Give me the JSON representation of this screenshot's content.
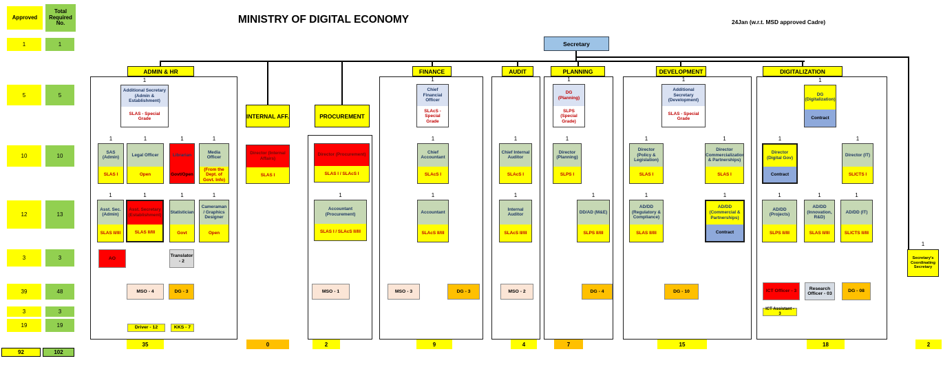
{
  "title": "MINISTRY OF DIGITAL ECONOMY",
  "note": "24Jan (w.r.t. MSD approved Cadre)",
  "secretary_label": "Secretary",
  "left_table": {
    "approved_header": "Approved",
    "required_header": "Total Required No.",
    "approved_values": [
      "1",
      "5",
      "10",
      "12",
      "3",
      "39",
      "3",
      "19"
    ],
    "required_values": [
      "1",
      "5",
      "10",
      "13",
      "3",
      "48",
      "3",
      "19"
    ],
    "approved_total": "92",
    "required_total": "102"
  },
  "coordinating": {
    "count": "1",
    "title": "Secretary's Coordinating Secretary",
    "total": "2"
  },
  "colors": {
    "yellow": "#FFFF00",
    "green": "#92D050",
    "box_green": "#C6D8B4",
    "red": "#FF0000",
    "orange": "#FFC000",
    "cream": "#FBE5D6",
    "secretary_blue": "#9DC3E6",
    "head_bluegray": "#D9E1F2",
    "contract_blue": "#8EA9DB",
    "research_gray": "#D6DCE4",
    "translator_gray": "#D9D9D9",
    "navy_text": "#1F3864",
    "red_text": "#C00000",
    "darkred_text": "#6B0A0A"
  },
  "departments": [
    {
      "name": "ADMIN & HR",
      "total": "35",
      "boxes": [
        {
          "count": "1",
          "title": "Additional Secretary (Admin & Establishment)",
          "grade": "SLAS - Special Grade"
        },
        {
          "count": "1",
          "title": "SAS (Admin)",
          "grade": "SLAS I"
        },
        {
          "count": "1",
          "title": "Legal Officer",
          "grade": "Open"
        },
        {
          "count": "1",
          "title": "Librarian",
          "grade": "Govt/Open"
        },
        {
          "count": "1",
          "title": "Media Officer",
          "grade": "(From the Dept. of Govt. Info)"
        },
        {
          "count": "1",
          "title": "Asst. Sec. (Admin)",
          "grade": "SLAS II/III"
        },
        {
          "count": "1",
          "title": "Asst. Secretary (Establishment)",
          "grade": "SLAS II/III"
        },
        {
          "count": "1",
          "title": "Statistician",
          "grade": "Govt"
        },
        {
          "count": "1",
          "title": "Cameraman / Graphics Designer",
          "grade": "Open"
        },
        {
          "title": "AO"
        },
        {
          "title": "Translator - 2"
        },
        {
          "title": "MSO - 4"
        },
        {
          "title": "DG - 3"
        },
        {
          "title": "Driver - 12"
        },
        {
          "title": "KKS - 7"
        }
      ]
    },
    {
      "name": "INTERNAL AFF.",
      "total": "0",
      "boxes": [
        {
          "title": "Director (Internal Affairs)",
          "grade": "SLAS I"
        }
      ]
    },
    {
      "name": "PROCUREMENT",
      "total": "2",
      "boxes": [
        {
          "title": "Director (Procurement)",
          "grade": "SLAS I / SLAcS I"
        },
        {
          "count": "1",
          "title": "Accountant (Procurement)",
          "grade": "SLAS I / SLAcS II/III"
        },
        {
          "title": "MSO - 1"
        }
      ]
    },
    {
      "name": "FINANCE",
      "total": "9",
      "boxes": [
        {
          "count": "1",
          "title": "Chief Financial Officer",
          "grade": "SLAcS - Special Grade"
        },
        {
          "count": "1",
          "title": "Chief Accountant",
          "grade": "SLAcS I"
        },
        {
          "count": "1",
          "title": "Accountant",
          "grade": "SLAcS II/III"
        },
        {
          "title": "MSO - 3"
        },
        {
          "title": "DG - 3"
        }
      ]
    },
    {
      "name": "AUDIT",
      "total": "4",
      "boxes": [
        {
          "count": "1",
          "title": "Chief Internal Auditor",
          "grade": "SLAcS I"
        },
        {
          "count": "1",
          "title": "Internal Auditor",
          "grade": "SLAcS II/III"
        },
        {
          "title": "MSO - 2"
        }
      ]
    },
    {
      "name": "PLANNING",
      "total": "7",
      "boxes": [
        {
          "count": "1",
          "title": "DG (Planning)",
          "grade": "SLPS (Special Grade)"
        },
        {
          "count": "1",
          "title": "Director (Planning)",
          "grade": "SLPS I"
        },
        {
          "count": "1",
          "title": "DD/AD (M&E)",
          "grade": "SLPS II/III"
        },
        {
          "title": "DG - 4"
        }
      ]
    },
    {
      "name": "DEVELOPMENT",
      "total": "15",
      "boxes": [
        {
          "count": "1",
          "title": "Additional Secretary (Development)",
          "grade": "SLAS - Special Grade"
        },
        {
          "count": "1",
          "title": "Director (Policy & Legislation)",
          "grade": "SLAS I"
        },
        {
          "count": "1",
          "title": "Director (Commercialization & Partnerships)",
          "grade": "SLAS I"
        },
        {
          "count": "1",
          "title": "AD/DD (Regulatory & Compliance)",
          "grade": "SLAS II/III"
        },
        {
          "count": "1",
          "title": "AD/DD (Commercial & Partnerships)",
          "grade": "Contract"
        },
        {
          "title": "DG - 10"
        }
      ]
    },
    {
      "name": "DIGITALIZATION",
      "total": "18",
      "boxes": [
        {
          "count": "1",
          "title": "DG (Digitalization)",
          "grade": "Contract"
        },
        {
          "count": "1",
          "title": "Director (Digital Gov)",
          "grade": "Contract"
        },
        {
          "count": "1",
          "title": "Director (IT)",
          "grade": "SLICTS I"
        },
        {
          "count": "1",
          "title": "AD/DD (Projects)",
          "grade": "SLPS II/III"
        },
        {
          "count": "1",
          "title": "AD/DD (Innovation, R&D)",
          "grade": "SLAS II/III"
        },
        {
          "count": "1",
          "title": "AD/DD (IT)",
          "grade": "SLICTS II/III"
        },
        {
          "title": "ICT Officer - 3"
        },
        {
          "title": "Research Officer - 03"
        },
        {
          "title": "DG - 08"
        },
        {
          "title": "ICT Assistant - 3"
        }
      ]
    }
  ]
}
